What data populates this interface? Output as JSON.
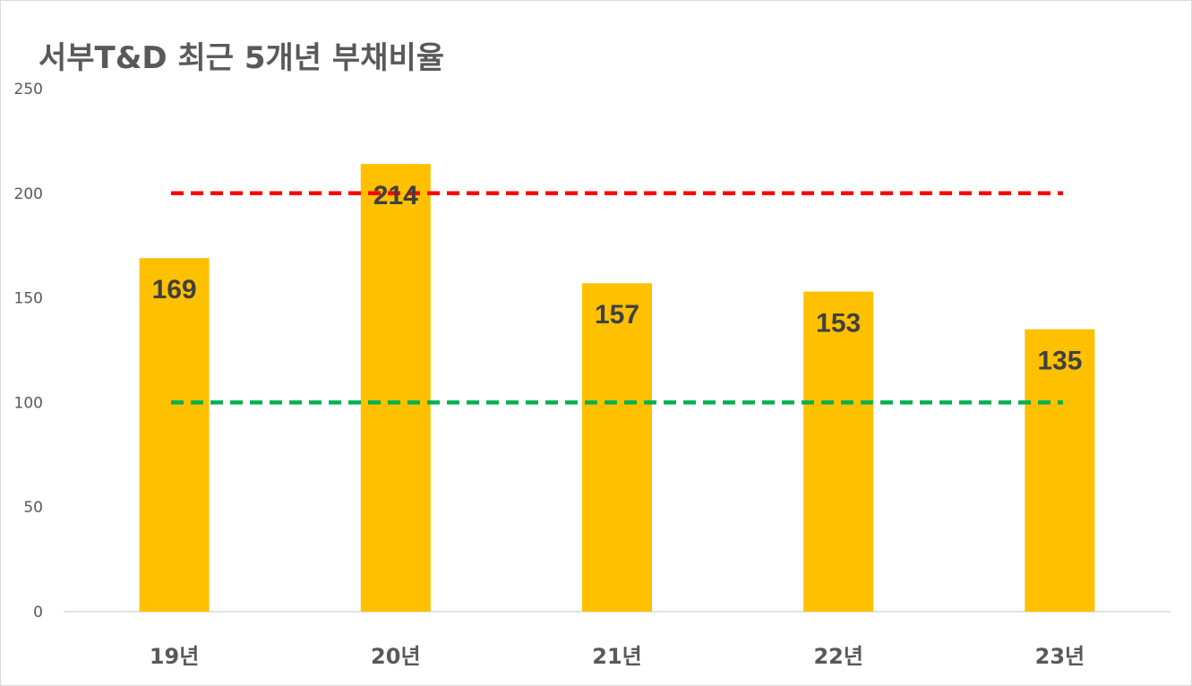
{
  "chart_data": {
    "type": "bar",
    "title": "서부T&D 최근 5개년 부채비율",
    "categories": [
      "19년",
      "20년",
      "21년",
      "22년",
      "23년"
    ],
    "values": [
      169,
      214,
      157,
      153,
      135
    ],
    "data_labels": [
      "169",
      "214",
      "157",
      "153",
      "135"
    ],
    "y_ticks": [
      "0",
      "50",
      "100",
      "150",
      "200",
      "250"
    ],
    "ylim": [
      0,
      250
    ],
    "reference_lines": [
      {
        "value": 200,
        "color": "#ff0000",
        "style": "dashed"
      },
      {
        "value": 100,
        "color": "#00b050",
        "style": "dashed"
      }
    ],
    "bar_color": "#ffc000",
    "grid": false,
    "legend": "none"
  }
}
